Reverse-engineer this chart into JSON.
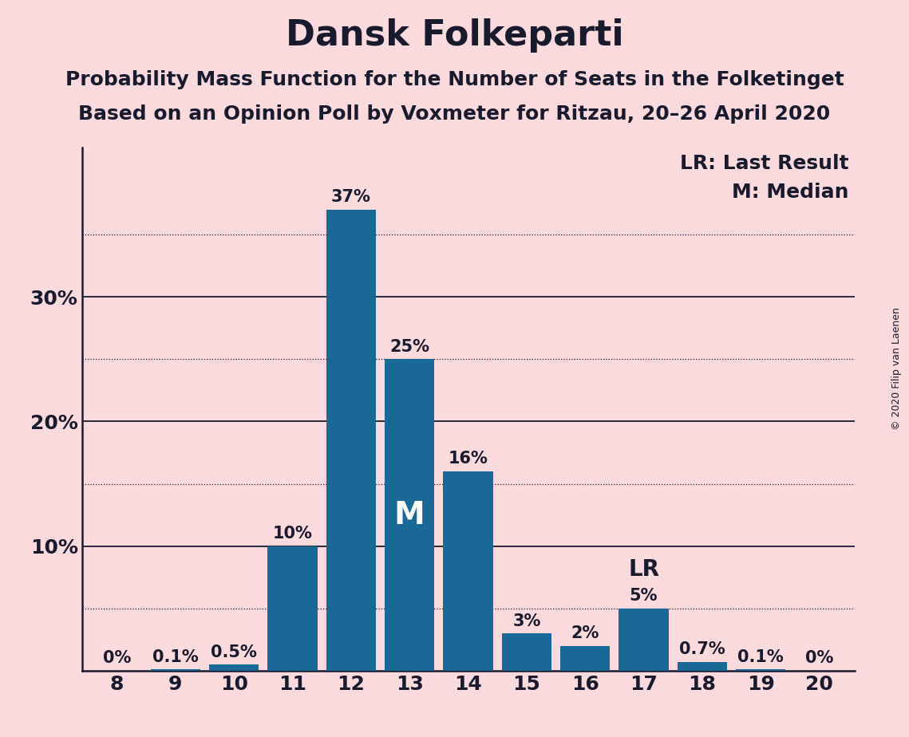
{
  "title": "Dansk Folkeparti",
  "subtitle1": "Probability Mass Function for the Number of Seats in the Folketinget",
  "subtitle2": "Based on an Opinion Poll by Voxmeter for Ritzau, 20–26 April 2020",
  "copyright": "© 2020 Filip van Laenen",
  "categories": [
    8,
    9,
    10,
    11,
    12,
    13,
    14,
    15,
    16,
    17,
    18,
    19,
    20
  ],
  "values": [
    0.0,
    0.1,
    0.5,
    10.0,
    37.0,
    25.0,
    16.0,
    3.0,
    2.0,
    5.0,
    0.7,
    0.1,
    0.0
  ],
  "labels": [
    "0%",
    "0.1%",
    "0.5%",
    "10%",
    "37%",
    "25%",
    "16%",
    "3%",
    "2%",
    "5%",
    "0.7%",
    "0.1%",
    "0%"
  ],
  "bar_color": "#1a6896",
  "background_color": "#fadadd",
  "text_color": "#1a1a2e",
  "median_seat": 13,
  "lr_seat": 17,
  "ylim": [
    0,
    42
  ],
  "major_yticks": [
    10,
    20,
    30
  ],
  "dotted_yticks": [
    5,
    15,
    25,
    35
  ],
  "title_fontsize": 32,
  "subtitle_fontsize": 18,
  "label_fontsize": 15,
  "axis_fontsize": 18,
  "annotation_fontsize": 20,
  "legend_fontsize": 18
}
